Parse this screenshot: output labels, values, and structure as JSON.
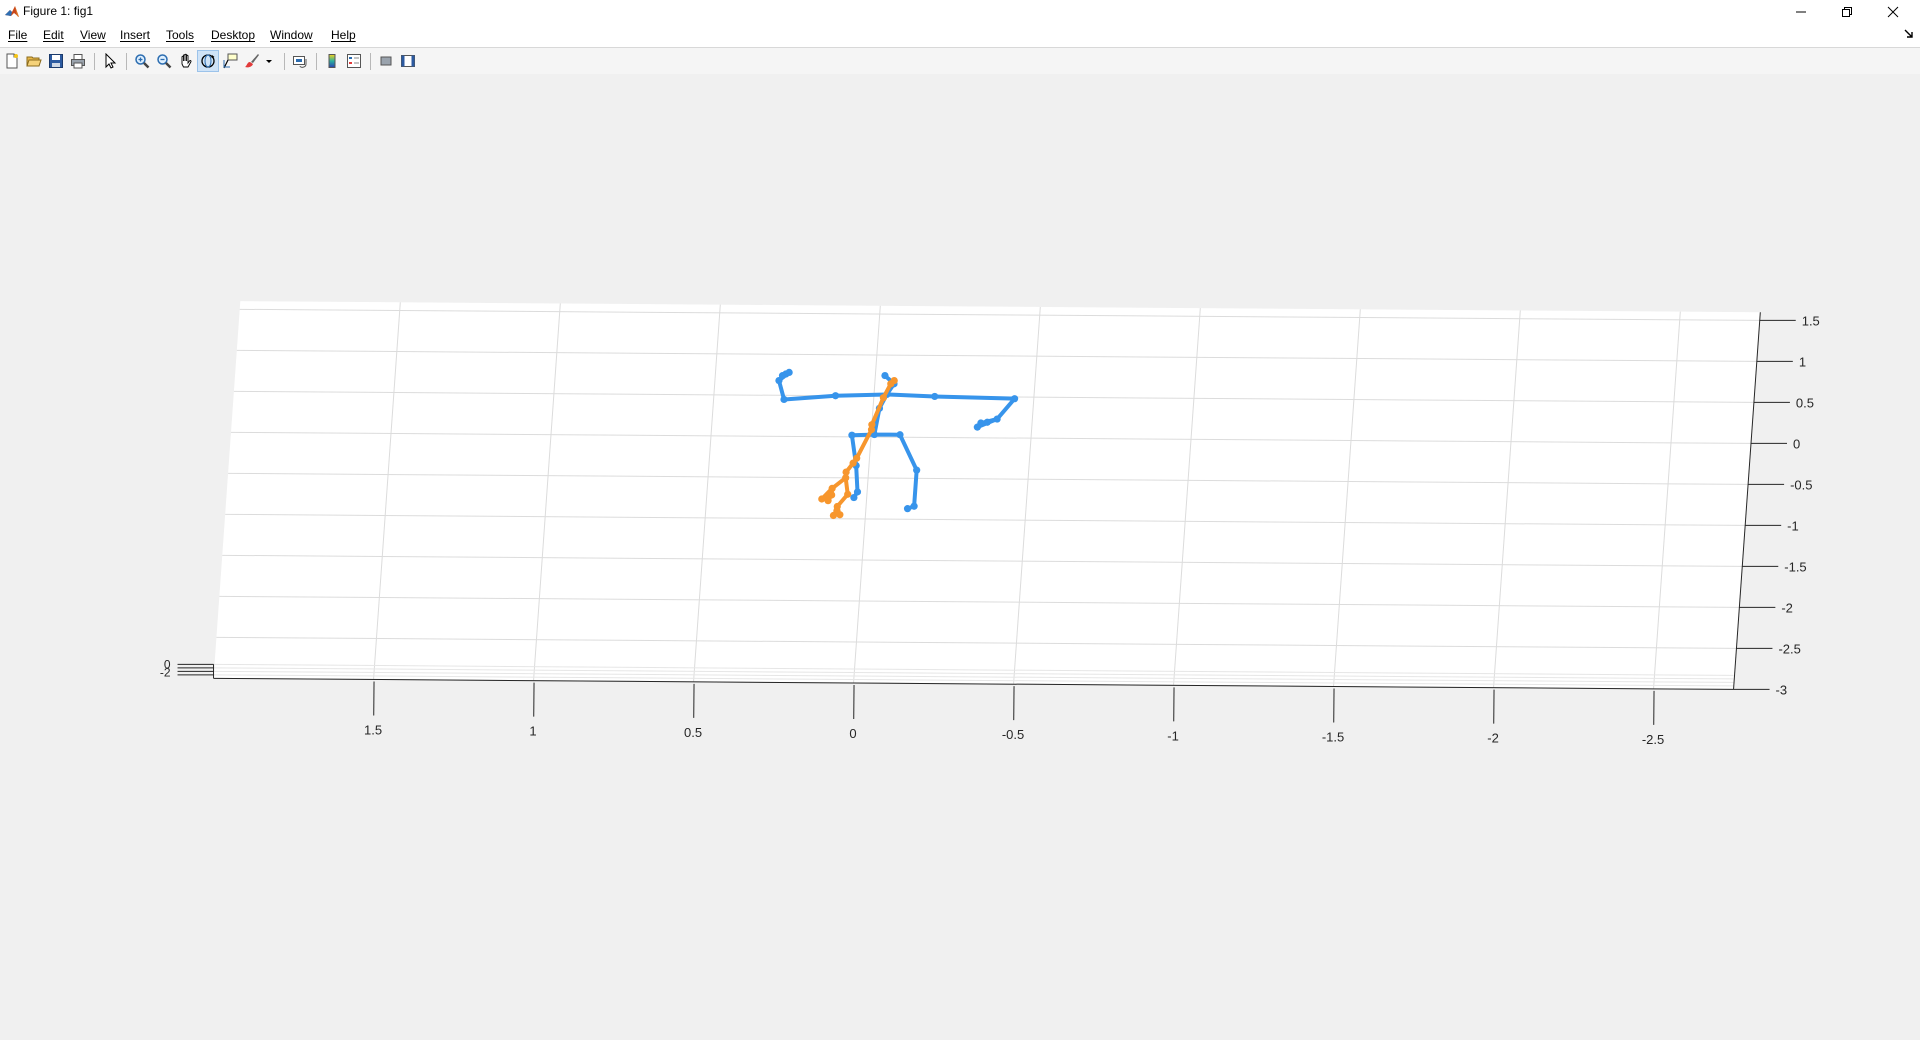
{
  "window": {
    "title": "Figure 1: fig1",
    "icon": "matlab-logo-icon",
    "controls": [
      "minimize-icon",
      "restore-icon",
      "close-icon"
    ]
  },
  "menu": [
    {
      "label": "File"
    },
    {
      "label": "Edit"
    },
    {
      "label": "View"
    },
    {
      "label": "Insert"
    },
    {
      "label": "Tools"
    },
    {
      "label": "Desktop"
    },
    {
      "label": "Window"
    },
    {
      "label": "Help"
    }
  ],
  "toolbar": {
    "buttons": [
      {
        "name": "new-figure",
        "icon": "new-file-icon"
      },
      {
        "name": "open-file",
        "icon": "open-folder-icon"
      },
      {
        "name": "save-figure",
        "icon": "save-icon"
      },
      {
        "name": "print-figure",
        "icon": "print-icon"
      },
      {
        "name": "edit-plot",
        "icon": "pointer-icon"
      },
      {
        "name": "zoom-in",
        "icon": "zoom-in-icon"
      },
      {
        "name": "zoom-out",
        "icon": "zoom-out-icon"
      },
      {
        "name": "pan",
        "icon": "hand-icon"
      },
      {
        "name": "rotate-3d",
        "icon": "rotate-icon",
        "active": true
      },
      {
        "name": "data-cursor",
        "icon": "data-cursor-icon"
      },
      {
        "name": "brush",
        "icon": "brush-icon"
      },
      {
        "name": "brush-options",
        "icon": "dropdown-arrow-icon"
      },
      {
        "name": "link-plot",
        "icon": "link-plot-icon"
      },
      {
        "name": "insert-colorbar",
        "icon": "colorbar-icon"
      },
      {
        "name": "insert-legend",
        "icon": "legend-icon"
      },
      {
        "name": "hide-plot-tools",
        "icon": "hide-tools-icon"
      },
      {
        "name": "show-plot-tools",
        "icon": "show-tools-icon"
      }
    ]
  },
  "chart_data": {
    "type": "line",
    "projection": "3d",
    "grid": true,
    "xlim": [
      -2.75,
      2.0
    ],
    "ylim": [
      -3,
      1.6
    ],
    "zlim": [
      -2,
      0
    ],
    "x_ticks": [
      "1.5",
      "1",
      "0.5",
      "0",
      "-0.5",
      "-1",
      "-1.5",
      "-2",
      "-2.5"
    ],
    "y_ticks": [
      "1.5",
      "1",
      "0.5",
      "0",
      "-0.5",
      "-1",
      "-1.5",
      "-2",
      "-2.5",
      "-3"
    ],
    "z_ticks": [
      "0",
      "-2"
    ],
    "series": [
      {
        "color": "#3794eb",
        "joints": [
          [
            -0.01,
            0.03
          ],
          [
            -0.02,
            0.35
          ],
          [
            -0.04,
            0.52
          ],
          [
            -0.06,
            0.65
          ],
          [
            -0.03,
            0.75
          ],
          [
            0.12,
            0.5
          ],
          [
            0.28,
            0.45
          ],
          [
            0.3,
            0.68
          ],
          [
            0.29,
            0.74
          ],
          [
            0.28,
            0.76
          ],
          [
            0.27,
            0.78
          ],
          [
            -0.19,
            0.5
          ],
          [
            -0.44,
            0.48
          ],
          [
            -0.39,
            0.23
          ],
          [
            -0.36,
            0.19
          ],
          [
            -0.34,
            0.18
          ],
          [
            -0.33,
            0.13
          ],
          [
            0.06,
            0.02
          ],
          [
            0.04,
            -0.35
          ],
          [
            0.03,
            -0.67
          ],
          [
            0.04,
            -0.74
          ],
          [
            -0.09,
            0.03
          ],
          [
            -0.15,
            -0.4
          ],
          [
            -0.15,
            -0.84
          ],
          [
            -0.13,
            -0.87
          ]
        ],
        "bones": [
          [
            0,
            1
          ],
          [
            1,
            2
          ],
          [
            2,
            3
          ],
          [
            3,
            4
          ],
          [
            2,
            5
          ],
          [
            5,
            6
          ],
          [
            6,
            7
          ],
          [
            7,
            8
          ],
          [
            7,
            9
          ],
          [
            7,
            10
          ],
          [
            2,
            11
          ],
          [
            11,
            12
          ],
          [
            12,
            13
          ],
          [
            13,
            14
          ],
          [
            13,
            15
          ],
          [
            13,
            16
          ],
          [
            0,
            17
          ],
          [
            17,
            18
          ],
          [
            18,
            19
          ],
          [
            19,
            20
          ],
          [
            0,
            21
          ],
          [
            21,
            22
          ],
          [
            22,
            23
          ],
          [
            23,
            24
          ]
        ]
      },
      {
        "color": "#f7962d",
        "joints": [
          [
            -0.06,
            0.69
          ],
          [
            -0.05,
            0.65
          ],
          [
            -0.03,
            0.48
          ],
          [
            0.0,
            0.15
          ],
          [
            0.0,
            0.09
          ],
          [
            0.04,
            -0.26
          ],
          [
            0.05,
            -0.32
          ],
          [
            0.07,
            -0.43
          ],
          [
            0.07,
            -0.5
          ],
          [
            0.06,
            -0.7
          ],
          [
            0.11,
            -0.63
          ],
          [
            0.11,
            -0.71
          ],
          [
            0.12,
            -0.78
          ],
          [
            0.14,
            -0.76
          ],
          [
            0.09,
            -0.85
          ],
          [
            0.09,
            -0.91
          ],
          [
            0.1,
            -0.96
          ],
          [
            0.08,
            -0.95
          ],
          [
            0.09,
            -0.9
          ]
        ],
        "bones": [
          [
            0,
            1
          ],
          [
            1,
            2
          ],
          [
            2,
            3
          ],
          [
            3,
            4
          ],
          [
            4,
            5
          ],
          [
            5,
            6
          ],
          [
            6,
            7
          ],
          [
            7,
            8
          ],
          [
            8,
            9
          ],
          [
            8,
            10
          ],
          [
            10,
            11
          ],
          [
            11,
            12
          ],
          [
            10,
            13
          ],
          [
            13,
            11
          ],
          [
            9,
            14
          ],
          [
            14,
            15
          ],
          [
            15,
            16
          ],
          [
            15,
            17
          ],
          [
            15,
            18
          ]
        ]
      }
    ]
  }
}
